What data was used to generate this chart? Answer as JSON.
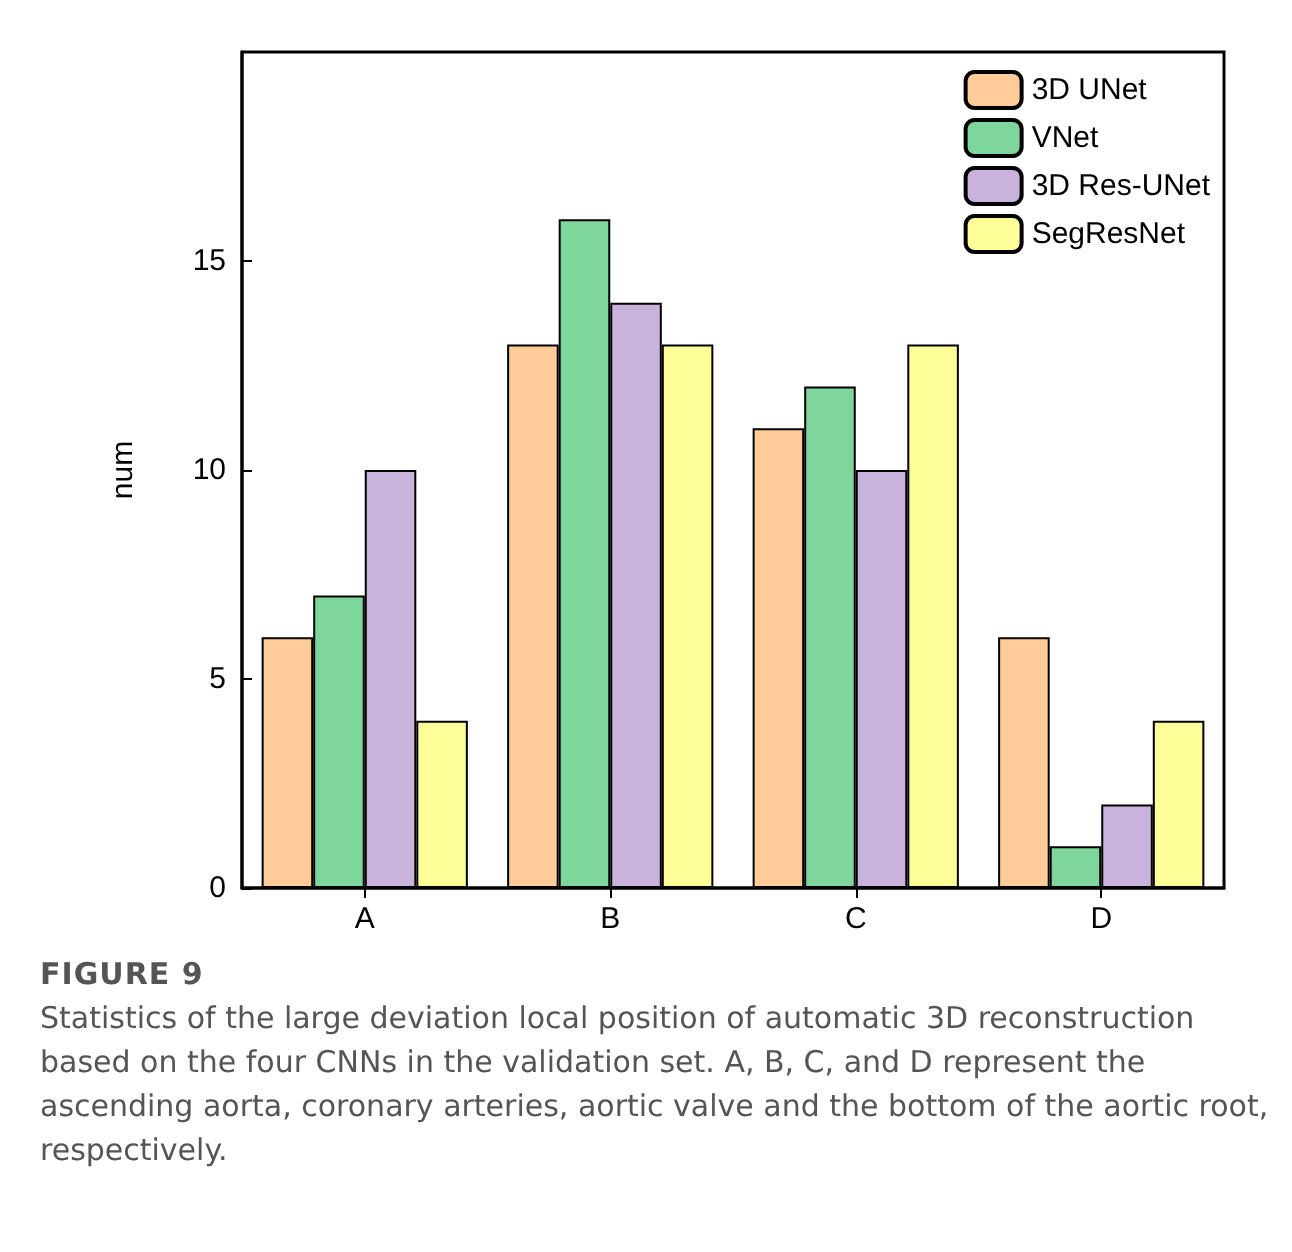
{
  "chart_data": {
    "type": "bar",
    "ylabel": "num",
    "categories": [
      "A",
      "B",
      "C",
      "D"
    ],
    "series": [
      {
        "name": "3D UNet",
        "color": "#ffcc99",
        "values": [
          6,
          13,
          11,
          6
        ]
      },
      {
        "name": "VNet",
        "color": "#7fd69d",
        "values": [
          7,
          16,
          12,
          1
        ]
      },
      {
        "name": "3D Res-UNet",
        "color": "#c9b3dc",
        "values": [
          10,
          14,
          10,
          2
        ]
      },
      {
        "name": "SegResNet",
        "color": "#ffff99",
        "values": [
          4,
          13,
          13,
          4
        ]
      }
    ],
    "ylim": [
      0,
      20
    ],
    "yticks": [
      0,
      5,
      10,
      15
    ],
    "grid": false,
    "legend": "top right",
    "annotations": [
      "FIGURE 9",
      "Statistics of the large deviation local position of automatic 3D reconstruction based on the four CNNs in the validation set. A, B, C, and D represent the ascending aorta, coronary arteries, aortic valve and the bottom of the aortic root, respectively."
    ]
  }
}
